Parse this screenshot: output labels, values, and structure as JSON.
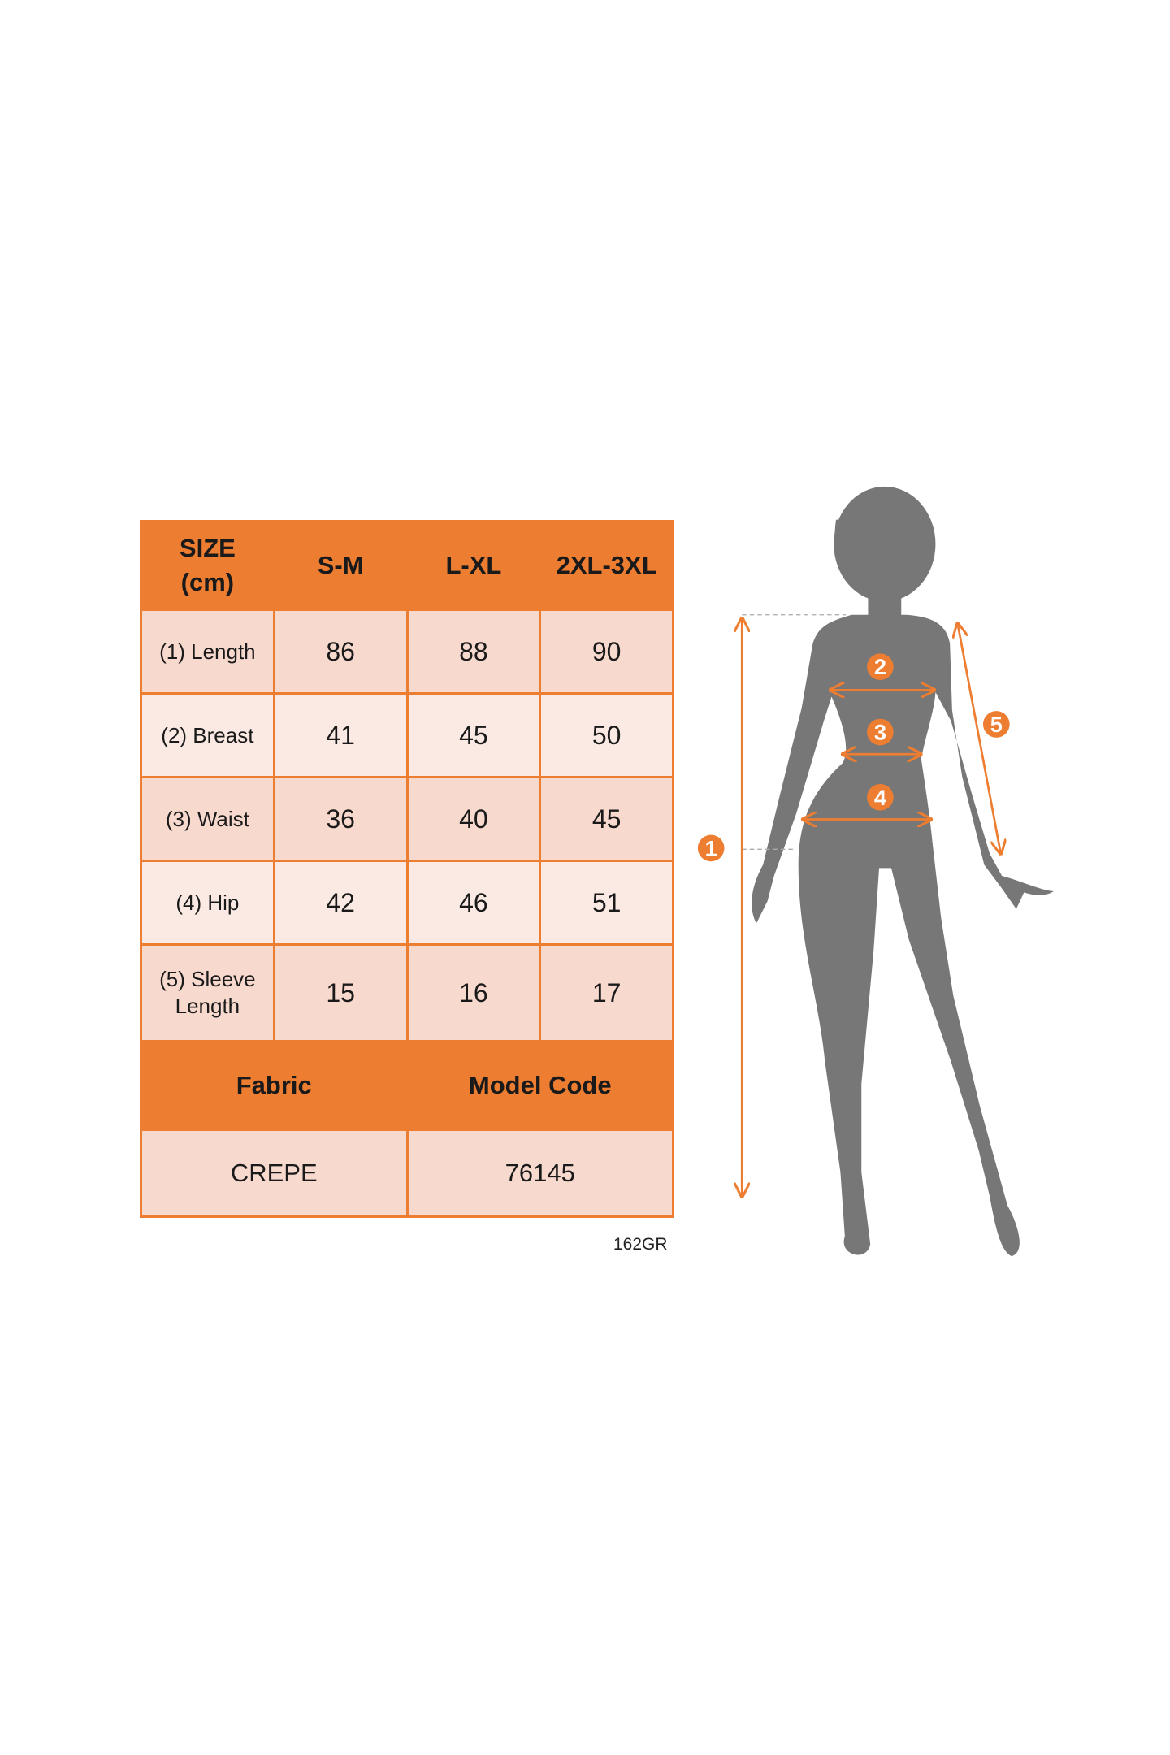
{
  "colors": {
    "accent": "#ED7D31",
    "cell": "#F8D9CE",
    "cell_light": "#FBEAE4",
    "silhouette": "#777777"
  },
  "table": {
    "header": {
      "size_line1": "SIZE",
      "size_line2": "(cm)",
      "columns": [
        "S-M",
        "L-XL",
        "2XL-3XL"
      ]
    },
    "rows": [
      {
        "label": "(1) Length",
        "values": [
          "86",
          "88",
          "90"
        ]
      },
      {
        "label": "(2) Breast",
        "values": [
          "41",
          "45",
          "50"
        ]
      },
      {
        "label": "(3) Waist",
        "values": [
          "36",
          "40",
          "45"
        ]
      },
      {
        "label": "(4) Hip",
        "values": [
          "42",
          "46",
          "51"
        ]
      },
      {
        "label_line1": "(5) Sleeve",
        "label_line2": "Length",
        "values": [
          "15",
          "16",
          "17"
        ]
      }
    ],
    "footer_header": {
      "fabric": "Fabric",
      "model_code": "Model Code"
    },
    "footer_values": {
      "fabric": "CREPE",
      "model_code": "76145"
    }
  },
  "code_label": "162GR",
  "figure": {
    "markers": [
      "1",
      "2",
      "3",
      "4",
      "5"
    ]
  }
}
